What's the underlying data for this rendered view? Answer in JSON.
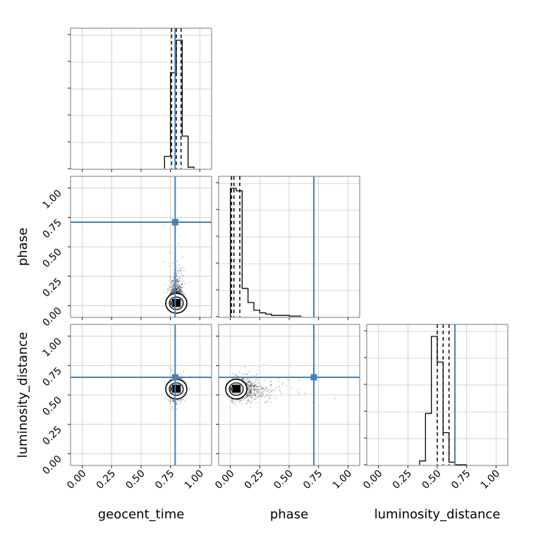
{
  "chart_data": {
    "type": "corner",
    "parameters": [
      "geocent_time",
      "phase",
      "luminosity_distance"
    ],
    "axis_range": [
      -0.1,
      1.1
    ],
    "ticks": [
      0.0,
      0.25,
      0.5,
      0.75,
      1.0
    ],
    "tick_labels": [
      "0.00",
      "0.25",
      "0.50",
      "0.75",
      "1.00"
    ],
    "grid": true,
    "truths": {
      "geocent_time": 0.79,
      "phase": 0.71,
      "luminosity_distance": 0.65
    },
    "colors": {
      "truth": "#4682b4",
      "hist": "#000000",
      "points": "#000000"
    },
    "histograms": [
      {
        "parameter": "geocent_time",
        "bin_edges": [
          0.7,
          0.75,
          0.8,
          0.85,
          0.9,
          0.95
        ],
        "counts": [
          9,
          71,
          95,
          24,
          1
        ],
        "quantiles": [
          0.76,
          0.8,
          0.84
        ]
      },
      {
        "parameter": "phase",
        "bin_edges": [
          0.0,
          0.05,
          0.1,
          0.15,
          0.2,
          0.25,
          0.3,
          0.35,
          0.4,
          0.45,
          0.5,
          0.55,
          0.6
        ],
        "counts": [
          100,
          98,
          22,
          11,
          5,
          3,
          2,
          1,
          1,
          1,
          0.5,
          0.5
        ],
        "quantiles": [
          0.01,
          0.03,
          0.08
        ]
      },
      {
        "parameter": "luminosity_distance",
        "bin_edges": [
          0.35,
          0.4,
          0.45,
          0.5,
          0.55,
          0.6,
          0.65,
          0.7,
          0.75
        ],
        "counts": [
          3,
          40,
          100,
          80,
          25,
          2,
          0,
          0
        ],
        "quantiles": [
          0.5,
          0.55,
          0.6
        ]
      }
    ],
    "scatter_panels": [
      {
        "x": "geocent_time",
        "y": "phase",
        "x_center": 0.8,
        "y_center": 0.02,
        "x_spread": 0.03,
        "y_spread": 0.08
      },
      {
        "x": "geocent_time",
        "y": "luminosity_distance",
        "x_center": 0.8,
        "y_center": 0.55,
        "x_spread": 0.03,
        "y_spread": 0.05
      },
      {
        "x": "phase",
        "y": "luminosity_distance",
        "x_center": 0.05,
        "y_center": 0.55,
        "x_spread": 0.12,
        "y_spread": 0.05
      }
    ]
  }
}
